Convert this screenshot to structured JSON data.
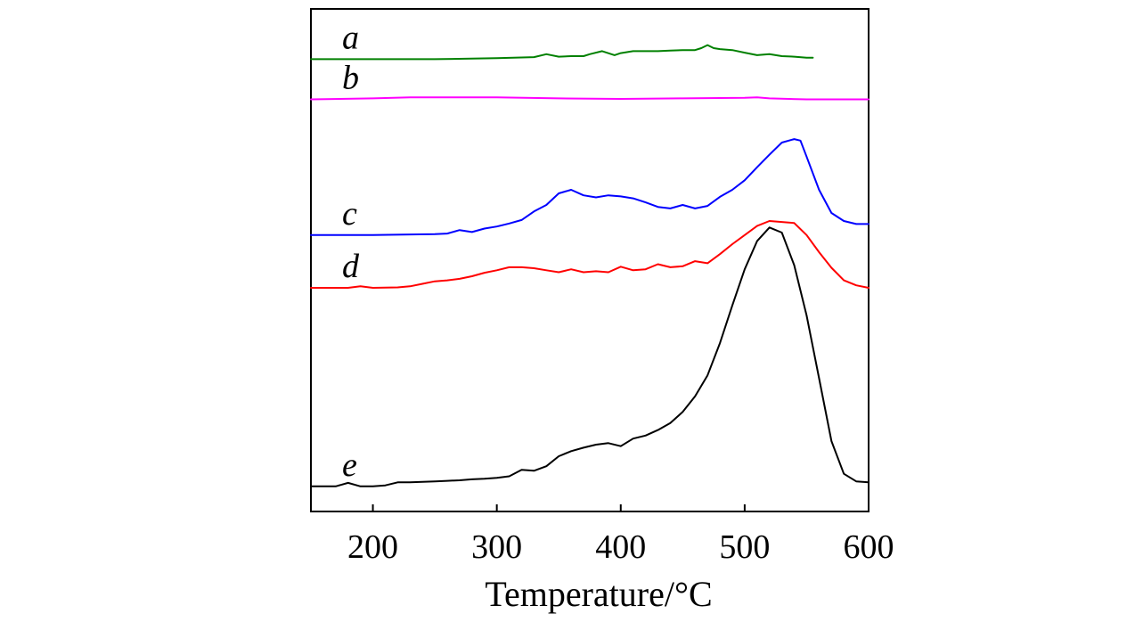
{
  "chart_data": {
    "type": "line",
    "title": "",
    "xlabel": "Temperature/°C",
    "ylabel": "",
    "xlim": [
      150,
      600
    ],
    "ylim": [
      0,
      100
    ],
    "x_ticks": [
      200,
      300,
      400,
      500,
      600
    ],
    "x_tick_labels": [
      "200",
      "300",
      "400",
      "500",
      "600"
    ],
    "grid": false,
    "legend": "inline labels at left of each curve",
    "series": [
      {
        "name": "a",
        "color": "#008000",
        "x": [
          150,
          200,
          250,
          300,
          330,
          340,
          350,
          360,
          370,
          375,
          385,
          395,
          400,
          410,
          420,
          430,
          440,
          450,
          460,
          465,
          470,
          475,
          480,
          490,
          500,
          510,
          520,
          530,
          540,
          550,
          555
        ],
        "y": [
          90.0,
          90.0,
          90.0,
          90.2,
          90.4,
          91.0,
          90.5,
          90.6,
          90.6,
          91.0,
          91.6,
          90.8,
          91.2,
          91.6,
          91.6,
          91.6,
          91.7,
          91.8,
          91.8,
          92.2,
          92.8,
          92.2,
          92.0,
          91.8,
          91.3,
          90.8,
          91.0,
          90.6,
          90.5,
          90.3,
          90.3
        ]
      },
      {
        "name": "b",
        "color": "#ff00ff",
        "x": [
          150,
          200,
          230,
          250,
          280,
          300,
          350,
          400,
          450,
          500,
          510,
          520,
          550,
          600
        ],
        "y": [
          82.0,
          82.2,
          82.4,
          82.4,
          82.4,
          82.4,
          82.2,
          82.1,
          82.2,
          82.3,
          82.4,
          82.2,
          82.0,
          82.0
        ]
      },
      {
        "name": "c",
        "color": "#0000ff",
        "x": [
          150,
          200,
          250,
          260,
          270,
          280,
          290,
          300,
          310,
          320,
          330,
          340,
          350,
          360,
          370,
          380,
          390,
          400,
          410,
          420,
          430,
          440,
          450,
          460,
          470,
          480,
          490,
          500,
          510,
          520,
          530,
          540,
          545,
          550,
          560,
          570,
          580,
          590,
          600
        ],
        "y": [
          55.0,
          55.0,
          55.2,
          55.3,
          56.0,
          55.6,
          56.3,
          56.7,
          57.3,
          58.0,
          59.7,
          61.0,
          63.3,
          64.0,
          62.9,
          62.5,
          62.9,
          62.7,
          62.3,
          61.5,
          60.6,
          60.3,
          61.0,
          60.3,
          60.8,
          62.6,
          64.0,
          65.9,
          68.5,
          71.0,
          73.4,
          74.1,
          73.8,
          70.6,
          64.0,
          59.4,
          57.8,
          57.2,
          57.2
        ]
      },
      {
        "name": "d",
        "color": "#ff0000",
        "x": [
          150,
          180,
          190,
          200,
          220,
          230,
          240,
          250,
          260,
          270,
          280,
          290,
          300,
          310,
          320,
          330,
          340,
          350,
          360,
          370,
          380,
          390,
          400,
          410,
          420,
          430,
          440,
          450,
          460,
          470,
          480,
          490,
          500,
          510,
          520,
          530,
          540,
          550,
          560,
          570,
          580,
          590,
          600
        ],
        "y": [
          44.5,
          44.5,
          44.8,
          44.5,
          44.6,
          44.8,
          45.3,
          45.8,
          46.0,
          46.3,
          46.8,
          47.5,
          48.0,
          48.6,
          48.6,
          48.4,
          48.0,
          47.6,
          48.2,
          47.6,
          47.8,
          47.6,
          48.7,
          48.0,
          48.2,
          49.2,
          48.6,
          48.8,
          49.8,
          49.4,
          51.2,
          53.2,
          55.0,
          56.8,
          57.8,
          57.6,
          57.4,
          55.0,
          51.6,
          48.5,
          46.0,
          45.0,
          44.5
        ]
      },
      {
        "name": "e",
        "color": "#000000",
        "x": [
          150,
          170,
          180,
          190,
          200,
          210,
          220,
          230,
          240,
          250,
          260,
          270,
          280,
          290,
          300,
          310,
          320,
          330,
          340,
          350,
          360,
          370,
          380,
          390,
          400,
          410,
          420,
          430,
          440,
          450,
          460,
          470,
          480,
          490,
          500,
          510,
          520,
          530,
          540,
          550,
          560,
          570,
          580,
          590,
          600
        ],
        "y": [
          5.0,
          5.0,
          5.7,
          5.0,
          5.0,
          5.2,
          5.8,
          5.8,
          5.9,
          6.0,
          6.1,
          6.2,
          6.4,
          6.5,
          6.7,
          7.0,
          8.3,
          8.1,
          9.0,
          11.0,
          12.0,
          12.7,
          13.3,
          13.6,
          13.0,
          14.5,
          15.1,
          16.2,
          17.6,
          19.8,
          22.9,
          27.1,
          33.5,
          41.0,
          48.2,
          53.8,
          56.5,
          55.5,
          49.0,
          39.0,
          26.5,
          14.0,
          7.5,
          6.0,
          5.8
        ]
      }
    ],
    "curve_labels": [
      {
        "series": "a",
        "text": "a"
      },
      {
        "series": "b",
        "text": "b"
      },
      {
        "series": "c",
        "text": "c"
      },
      {
        "series": "d",
        "text": "d"
      },
      {
        "series": "e",
        "text": "e"
      }
    ]
  }
}
